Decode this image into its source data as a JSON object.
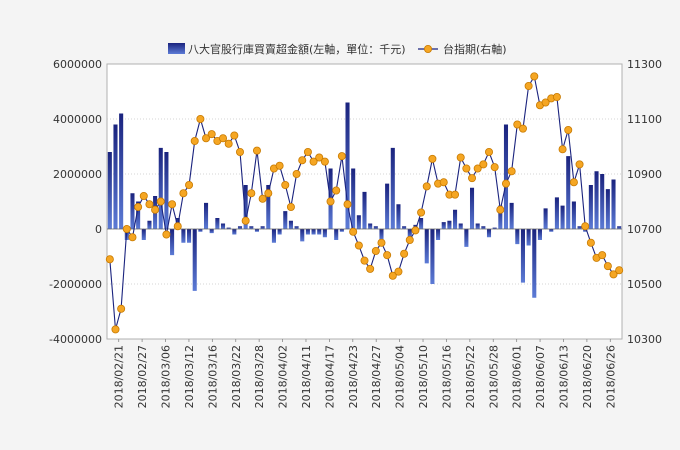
{
  "chart_data": {
    "type": "bar+line",
    "title": "",
    "legend_position": "top",
    "grid": true,
    "legend": {
      "bar_label": "八大官股行庫買賣超金額(左軸，單位：千元)",
      "line_label": "台指期(右軸)"
    },
    "colors": {
      "bar_top": "#1a237e",
      "bar_bottom": "#5c7bd6",
      "line": "#1a237e",
      "marker_fill": "#f5a623",
      "marker_stroke": "#c87a00",
      "plot_bg": "#ffffff",
      "grid": "#c9c9c9"
    },
    "y_left": {
      "min": -4000000,
      "max": 6000000,
      "ticks": [
        "-4000000",
        "-2000000",
        "0",
        "2000000",
        "4000000",
        "6000000"
      ]
    },
    "y_right": {
      "min": 10300,
      "max": 11300,
      "ticks": [
        "10300",
        "10500",
        "10700",
        "10900",
        "11100",
        "11300"
      ]
    },
    "x_tick_labels": [
      "2018/02/21",
      "2018/02/27",
      "2018/03/06",
      "2018/03/12",
      "2018/03/16",
      "2018/03/22",
      "2018/03/28",
      "2018/04/02",
      "2018/04/11",
      "2018/04/17",
      "2018/04/23",
      "2018/04/27",
      "2018/05/04",
      "2018/05/10",
      "2018/05/16",
      "2018/05/22",
      "2018/05/28",
      "2018/06/01",
      "2018/06/07",
      "2018/06/13",
      "2018/06/20",
      "2018/06/26"
    ],
    "bar_values": [
      2800000,
      3800000,
      4200000,
      -400000,
      1300000,
      1000000,
      -400000,
      300000,
      1200000,
      2950000,
      2800000,
      -950000,
      400000,
      -500000,
      -500000,
      -2250000,
      -100000,
      950000,
      -150000,
      400000,
      200000,
      50000,
      -200000,
      100000,
      1600000,
      100000,
      -100000,
      100000,
      1600000,
      -500000,
      -200000,
      650000,
      300000,
      100000,
      -450000,
      -200000,
      -200000,
      -200000,
      -300000,
      2200000,
      -400000,
      -100000,
      4600000,
      2200000,
      500000,
      1350000,
      200000,
      100000,
      -400000,
      1650000,
      2950000,
      900000,
      100000,
      -300000,
      150000,
      400000,
      -1250000,
      -2000000,
      -400000,
      250000,
      300000,
      700000,
      200000,
      -650000,
      1500000,
      200000,
      100000,
      -300000,
      50000,
      850000,
      3800000,
      950000,
      -550000,
      -1950000,
      -600000,
      -2500000,
      -400000,
      750000,
      -100000,
      1150000,
      850000,
      2650000,
      1000000,
      100000,
      -100000,
      1600000,
      2100000,
      2000000,
      1450000,
      1800000,
      100000
    ],
    "line_values": [
      10590,
      10335,
      10410,
      10700,
      10670,
      10780,
      10820,
      10790,
      10770,
      10800,
      10680,
      10790,
      10710,
      10830,
      10860,
      11020,
      11100,
      11030,
      11045,
      11020,
      11030,
      11010,
      11040,
      10980,
      10730,
      10830,
      10985,
      10810,
      10830,
      10920,
      10930,
      10860,
      10780,
      10900,
      10950,
      10980,
      10945,
      10960,
      10945,
      10800,
      10840,
      10965,
      10790,
      10690,
      10640,
      10585,
      10555,
      10620,
      10650,
      10605,
      10530,
      10545,
      10610,
      10660,
      10695,
      10760,
      10855,
      10955,
      10865,
      10870,
      10825,
      10825,
      10960,
      10920,
      10885,
      10920,
      10935,
      10980,
      10925,
      10770,
      10865,
      10910,
      11080,
      11065,
      11220,
      11255,
      11150,
      11160,
      11175,
      11180,
      10990,
      11060,
      10870,
      10935,
      10710,
      10650,
      10595,
      10605,
      10565,
      10535,
      10550
    ]
  }
}
